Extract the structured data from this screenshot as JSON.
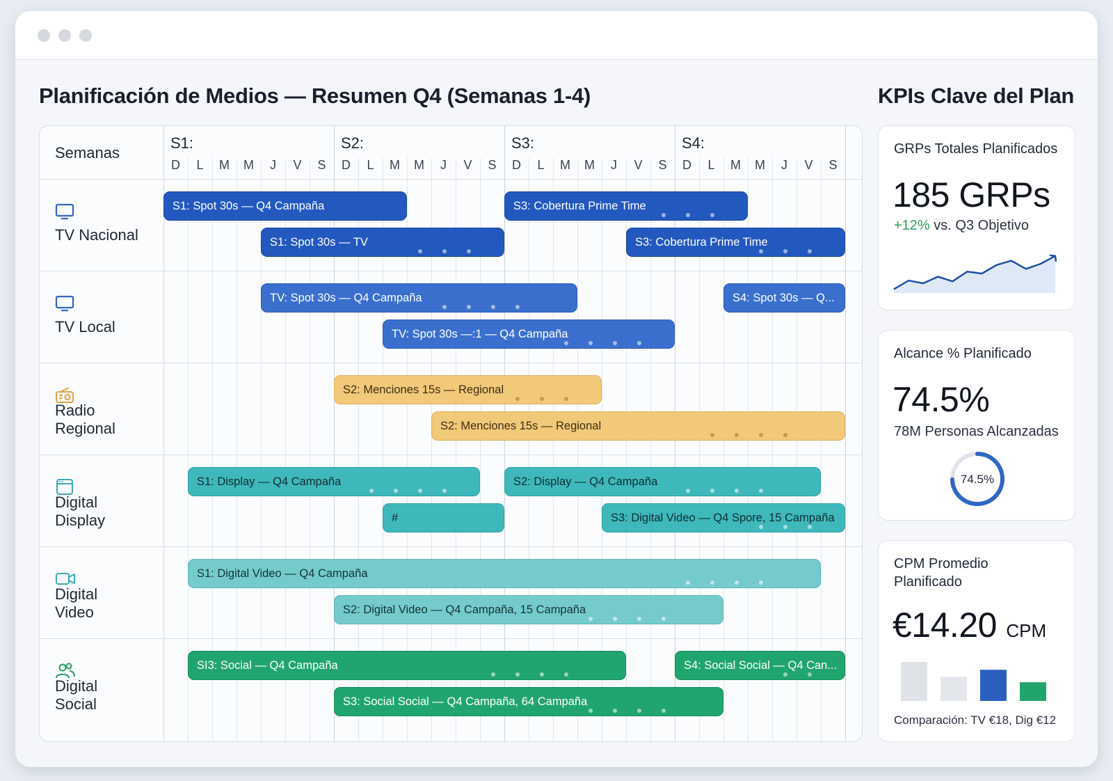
{
  "page_title": "Planificación de Medios — Resumen Q4 (Semanas 1-4)",
  "kpi_section_title": "KPIs Clave del Plan",
  "schedule": {
    "header_label": "Semanas",
    "weeks": [
      "S1:",
      "S2:",
      "S3:",
      "S4:"
    ],
    "days": [
      "D",
      "L",
      "M",
      "M",
      "J",
      "V",
      "S"
    ],
    "rows": [
      {
        "label": "TV Nacional",
        "icon": "tv-icon",
        "bars": [
          {
            "text": "S1: Spot 30s — Q4 Campaña",
            "start_day": 0,
            "end_day": 10,
            "lane": 0
          },
          {
            "text": "S1: Spot 30s — TV",
            "start_day": 4,
            "end_day": 14,
            "lane": 1
          },
          {
            "text": "S3: Cobertura Prime Time",
            "start_day": 14,
            "end_day": 24,
            "lane": 0
          },
          {
            "text": "S3: Cobertura Prime Time",
            "start_day": 19,
            "end_day": 28,
            "lane": 1
          }
        ]
      },
      {
        "label": "TV Local",
        "icon": "tv-icon",
        "bars": [
          {
            "text": "TV: Spot 30s — Q4 Campaña",
            "start_day": 4,
            "end_day": 17,
            "lane": 0
          },
          {
            "text": "TV: Spot 30s —:1 — Q4 Campaña",
            "start_day": 9,
            "end_day": 21,
            "lane": 1
          },
          {
            "text": "S4: Spot 30s — Q...",
            "start_day": 23,
            "end_day": 28,
            "lane": 0
          }
        ]
      },
      {
        "label": "Radio Regional",
        "icon": "radio-icon",
        "bars": [
          {
            "text": "S2: Menciones 15s — Regional",
            "start_day": 7,
            "end_day": 18,
            "lane": 0
          },
          {
            "text": "S2: Menciones 15s — Regional",
            "start_day": 11,
            "end_day": 28,
            "lane": 1
          }
        ]
      },
      {
        "label": "Digital Display",
        "icon": "browser-window-icon",
        "bars": [
          {
            "text": "S1: Display — Q4 Campaña",
            "start_day": 1,
            "end_day": 13,
            "lane": 0
          },
          {
            "text": "#",
            "start_day": 9,
            "end_day": 14,
            "lane": 1
          },
          {
            "text": "S2: Display — Q4 Campaña",
            "start_day": 14,
            "end_day": 27,
            "lane": 0
          },
          {
            "text": "S3: Digital Video — Q4 Spore, 15 Campaña",
            "start_day": 18,
            "end_day": 28,
            "lane": 1
          }
        ]
      },
      {
        "label": "Digital Video",
        "icon": "video-camera-icon",
        "bars": [
          {
            "text": "S1: Digital Video — Q4 Campaña",
            "start_day": 1,
            "end_day": 27,
            "lane": 0
          },
          {
            "text": "S2: Digital Video — Q4 Campaña, 15 Campaña",
            "start_day": 7,
            "end_day": 23,
            "lane": 1
          }
        ]
      },
      {
        "label": "Digital Social",
        "icon": "users-icon",
        "bars": [
          {
            "text": "SI3: Social — Q4 Campaña",
            "start_day": 1,
            "end_day": 19,
            "lane": 0
          },
          {
            "text": "S4: Social Social — Q4 Can...",
            "start_day": 21,
            "end_day": 28,
            "lane": 0
          },
          {
            "text": "S3: Social Social — Q4 Campaña, 64 Campaña",
            "start_day": 7,
            "end_day": 23,
            "lane": 1
          }
        ]
      }
    ]
  },
  "kpis": {
    "grps": {
      "label": "GRPs Totales Planificados",
      "value": "185 GRPs",
      "delta": "+12%",
      "delta_suffix": "vs. Q3 Objetivo",
      "trend": [
        0.1,
        0.32,
        0.25,
        0.42,
        0.3,
        0.55,
        0.5,
        0.72,
        0.83,
        0.62,
        0.75,
        0.95
      ]
    },
    "reach": {
      "label": "Alcance % Planificado",
      "value": "74.5%",
      "sub": "78M Personas Alcanzadas",
      "donut_label": "74.5%",
      "donut_fraction": 0.745
    },
    "cpm": {
      "label_line1": "CPM Promedio",
      "label_line2": "Planificado",
      "value": "€14.20",
      "unit": "CPM",
      "bars": [
        1.0,
        0.62,
        0.8,
        0.48
      ],
      "footnote": "Comparación: TV €18, Dig €12"
    }
  },
  "colors": {
    "tv_nacional": "#2358bf",
    "tv_local": "#3a6fcd",
    "radio": "#f2c879",
    "display": "#3fb8bb",
    "video": "#75cbcb",
    "social": "#21a56e",
    "accent_blue": "#2f66c4",
    "positive": "#2e9b5a"
  }
}
